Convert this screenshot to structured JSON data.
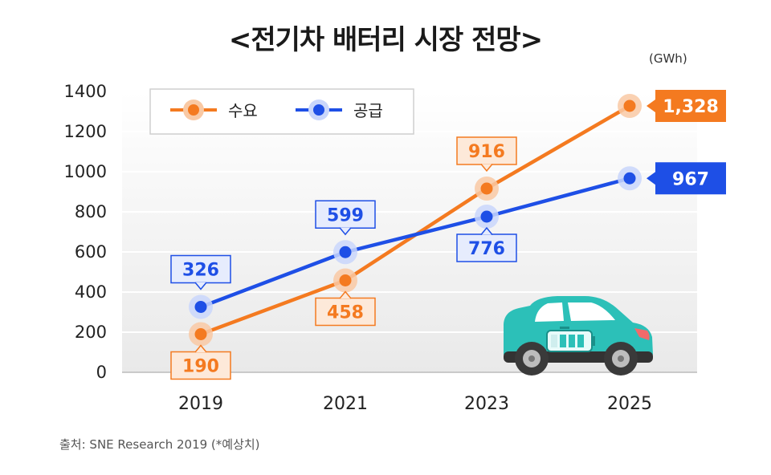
{
  "title": "<전기차 배터리 시장 전망>",
  "unit": "(GWh)",
  "source": "출처: SNE Research 2019 (*예상치)",
  "colors": {
    "demand": "#f47a20",
    "supply": "#1e4fe6",
    "demand_label_bg": "#fde9d9",
    "supply_label_bg": "#e6ecfd",
    "car_body": "#2cc0b8",
    "car_dark": "#3c3c3c"
  },
  "chart_data": {
    "type": "line",
    "x": [
      "2019",
      "2021",
      "2023",
      "2025"
    ],
    "series": [
      {
        "name": "수요",
        "values": [
          190,
          458,
          916,
          1328
        ],
        "labels": [
          "190",
          "458",
          "916",
          "1,328"
        ]
      },
      {
        "name": "공급",
        "values": [
          326,
          599,
          776,
          967
        ],
        "labels": [
          "326",
          "599",
          "776",
          "967"
        ]
      }
    ],
    "yticks": [
      "0",
      "200",
      "400",
      "600",
      "800",
      "1000",
      "1200",
      "1400"
    ],
    "ylim": [
      0,
      1400
    ],
    "legend_position": "top-left",
    "grid": true,
    "ylabel": "(GWh)"
  }
}
